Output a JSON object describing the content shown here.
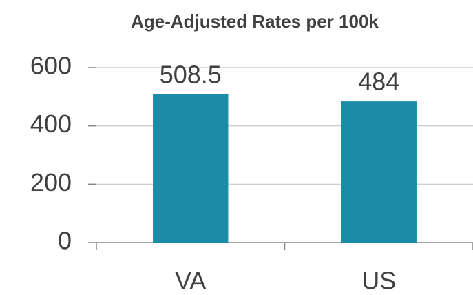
{
  "chart_data": {
    "type": "bar",
    "title": "Age-Adjusted Rates per 100k",
    "categories": [
      "VA",
      "US"
    ],
    "values": [
      508.5,
      484
    ],
    "color": "#1a8ca8",
    "ylim": [
      0,
      600
    ],
    "yticks": [
      0,
      200,
      400,
      600
    ],
    "grid": true
  }
}
